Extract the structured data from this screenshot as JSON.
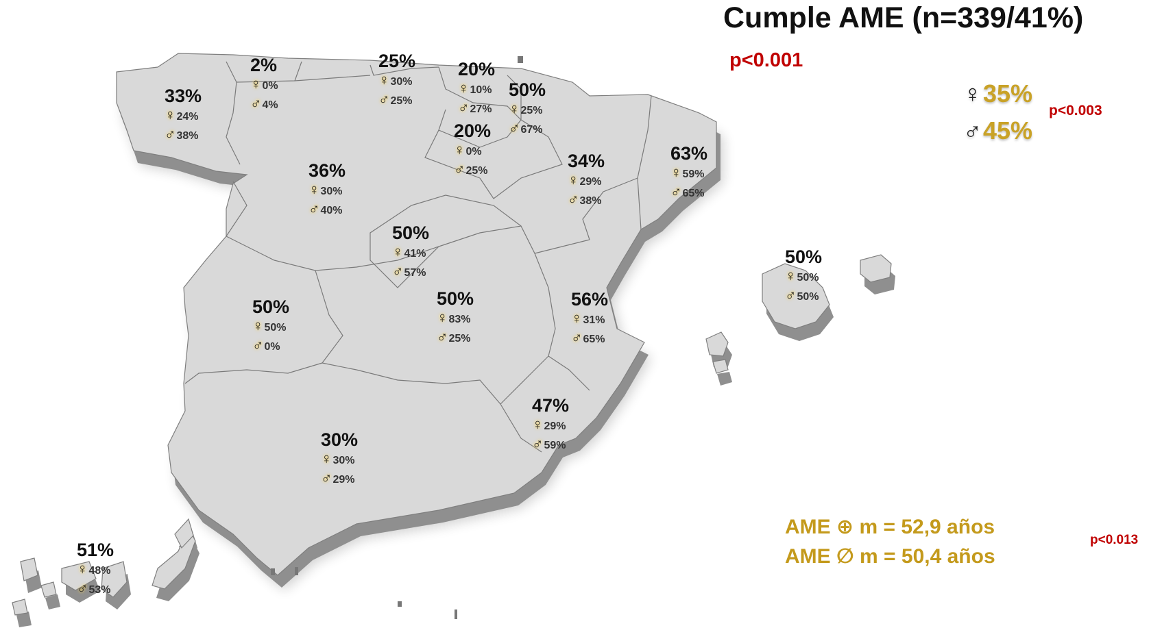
{
  "title": "Cumple AME (n=339/41%)",
  "p_main": "p<0.001",
  "legend": {
    "female_symbol": "♀",
    "female_value": "35%",
    "male_symbol": "♂",
    "male_value": "45%",
    "p_value": "p<0.003"
  },
  "age": {
    "positive": "AME ⊕ m = 52,9 años",
    "negative": "AME ∅ m = 50,4  años",
    "p_value": "p<0.013"
  },
  "symbols": {
    "female": "♀",
    "male": "♂"
  },
  "colors": {
    "map_fill": "#d9d9d9",
    "map_side": "#8f8f8f",
    "border": "#7a7a7a",
    "accent_gold": "#c9a227",
    "p_red": "#c00000",
    "title": "#111111"
  },
  "regions": [
    {
      "name": "Galicia",
      "total": "33%",
      "female": "24%",
      "male": "38%"
    },
    {
      "name": "Asturias",
      "total": "2%",
      "female": "0%",
      "male": "4%"
    },
    {
      "name": "Cantabria",
      "total": "25%",
      "female": "30%",
      "male": "25%"
    },
    {
      "name": "País Vasco",
      "total": "20%",
      "female": "10%",
      "male": "27%"
    },
    {
      "name": "Navarra",
      "total": "50%",
      "female": "25%",
      "male": "67%"
    },
    {
      "name": "La Rioja",
      "total": "20%",
      "female": "0%",
      "male": "25%"
    },
    {
      "name": "Castilla y León",
      "total": "36%",
      "female": "30%",
      "male": "40%"
    },
    {
      "name": "Aragón",
      "total": "34%",
      "female": "29%",
      "male": "38%"
    },
    {
      "name": "Cataluña",
      "total": "63%",
      "female": "59%",
      "male": "65%"
    },
    {
      "name": "Madrid",
      "total": "50%",
      "female": "41%",
      "male": "57%"
    },
    {
      "name": "Extremadura",
      "total": "50%",
      "female": "50%",
      "male": "0%"
    },
    {
      "name": "Castilla-La Mancha",
      "total": "50%",
      "female": "83%",
      "male": "25%"
    },
    {
      "name": "Comunidad Valenciana",
      "total": "56%",
      "female": "31%",
      "male": "65%"
    },
    {
      "name": "Baleares",
      "total": "50%",
      "female": "50%",
      "male": "50%"
    },
    {
      "name": "Murcia",
      "total": "47%",
      "female": "29%",
      "male": "59%"
    },
    {
      "name": "Andalucía",
      "total": "30%",
      "female": "30%",
      "male": "29%"
    },
    {
      "name": "Canarias",
      "total": "51%",
      "female": "48%",
      "male": "53%"
    }
  ]
}
